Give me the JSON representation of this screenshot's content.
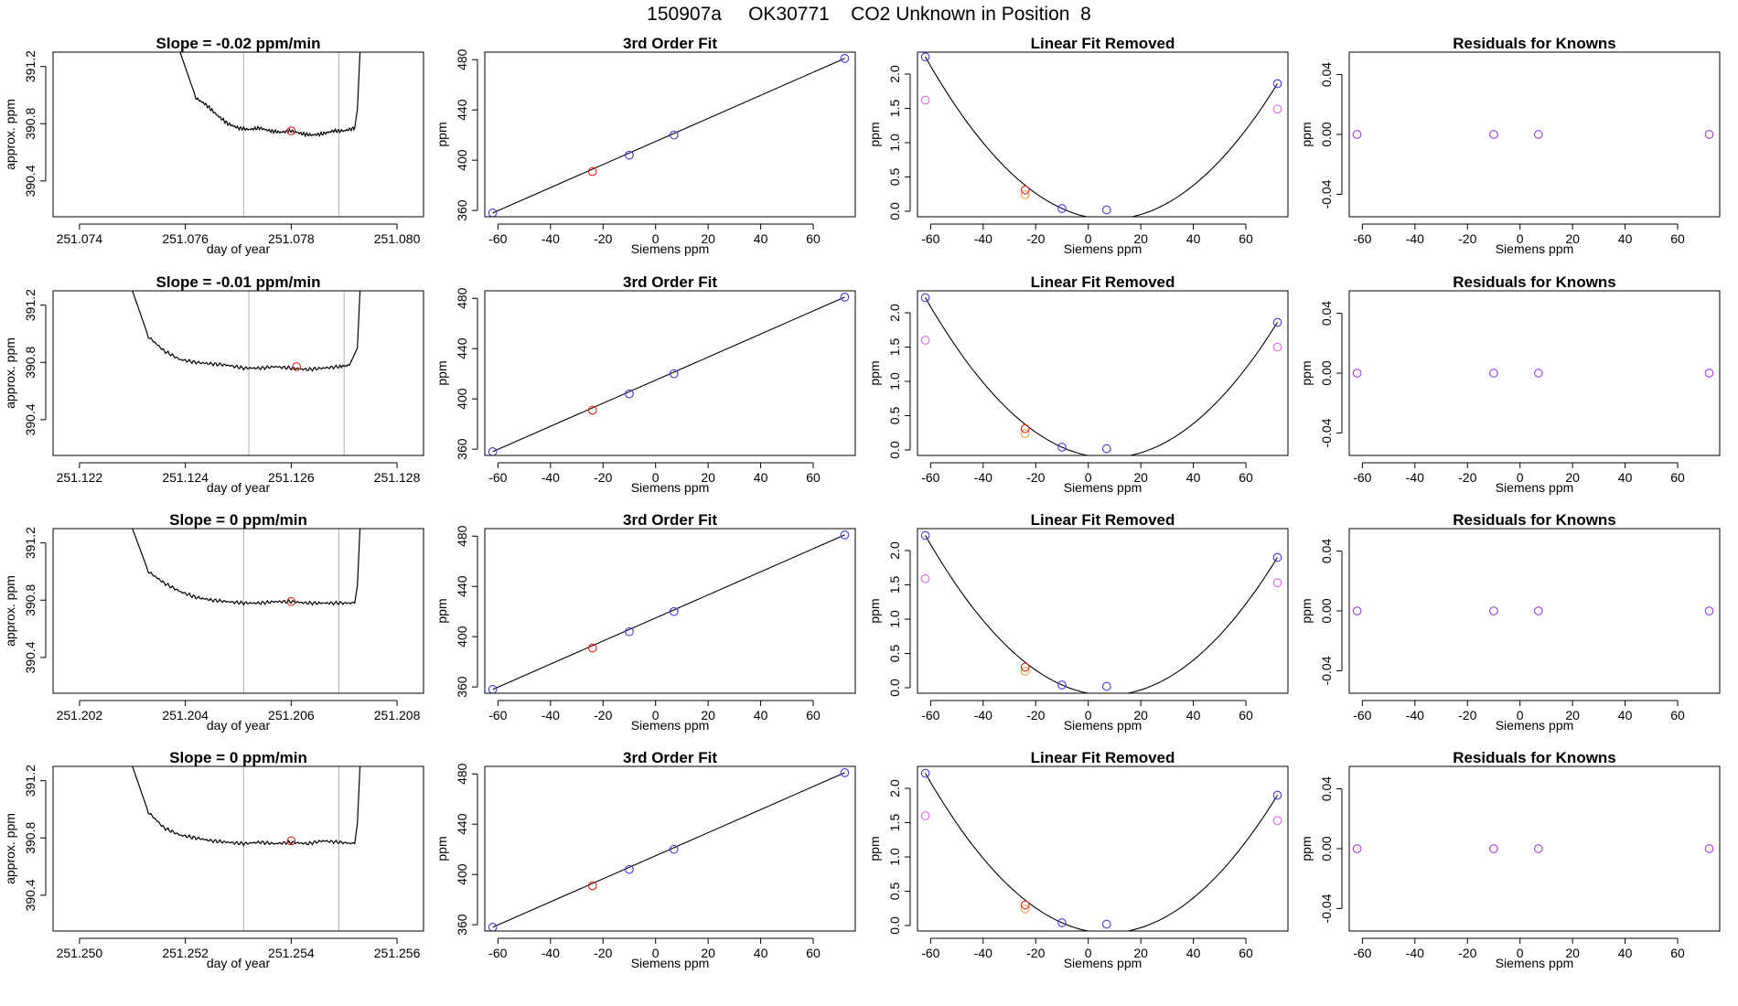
{
  "page": {
    "title": "150907a     OK30771    CO2 Unknown in Position  8"
  },
  "colors": {
    "trace": "#000000",
    "cursor": "#bbbbbb",
    "unknown": "#e0211d",
    "known_blue": "#3b3bdb",
    "ref_magenta": "#e065e6",
    "ref_orange": "#f2a33a",
    "residual_purple": "#9a3ad8",
    "frame": "#000000"
  },
  "chart_data": [
    {
      "type": "line",
      "title": "Slope =  -0.02  ppm/min",
      "xlabel": "day of year",
      "ylabel": "approx. ppm",
      "xlim": [
        251.0735,
        251.0805
      ],
      "ylim": [
        390.15,
        391.3
      ],
      "xticks": [
        "251.074",
        "251.076",
        "251.078",
        "251.080"
      ],
      "yticks": [
        "390.4",
        "390.8",
        "391.2"
      ],
      "cursors": [
        251.0771,
        251.0789
      ],
      "trace_x": [
        251.0759,
        251.0762,
        251.0764,
        251.0766,
        251.0768,
        251.077,
        251.0772,
        251.0774,
        251.0776,
        251.0778,
        251.078,
        251.0782,
        251.0784,
        251.0786,
        251.0788,
        251.079,
        251.0792,
        251.07925,
        251.0793
      ],
      "trace_y": [
        391.3,
        390.98,
        390.93,
        390.86,
        390.8,
        390.77,
        390.76,
        390.77,
        390.75,
        390.74,
        390.75,
        390.73,
        390.72,
        390.73,
        390.75,
        390.75,
        390.77,
        390.9,
        391.3
      ],
      "unknown_point": [
        251.078,
        390.75
      ]
    },
    {
      "type": "line",
      "title": "3rd Order Fit",
      "xlabel": "Siemens ppm",
      "ylabel": "ppm",
      "xlim": [
        -65,
        76
      ],
      "ylim": [
        355,
        486
      ],
      "xticks": [
        "-60",
        "-40",
        "-20",
        "0",
        "20",
        "40",
        "60"
      ],
      "yticks": [
        "360",
        "400",
        "440",
        "480"
      ],
      "known_x": [
        -62,
        -10,
        7,
        72
      ],
      "known_y": [
        358,
        404,
        420,
        481
      ],
      "unknown": [
        -24,
        391
      ]
    },
    {
      "type": "line",
      "title": "Linear Fit Removed",
      "xlabel": "Siemens ppm",
      "ylabel": "ppm",
      "xlim": [
        -65,
        76
      ],
      "ylim": [
        -0.08,
        2.32
      ],
      "xticks": [
        "-60",
        "-40",
        "-20",
        "0",
        "20",
        "40",
        "60"
      ],
      "yticks": [
        "0.0",
        "0.5",
        "1.0",
        "1.5",
        "2.0"
      ],
      "known_x": [
        -62,
        -10,
        7,
        72
      ],
      "known_y": [
        2.25,
        0.04,
        0.02,
        1.86
      ],
      "ref_x": [
        -62,
        72
      ],
      "ref_y": [
        1.62,
        1.49
      ],
      "unknown": [
        -24,
        0.31
      ],
      "unknown_ref": [
        -24,
        0.24
      ]
    },
    {
      "type": "scatter",
      "title": "Residuals for Knowns",
      "xlabel": "Siemens ppm",
      "ylabel": "ppm",
      "xlim": [
        -65,
        76
      ],
      "ylim": [
        -0.055,
        0.055
      ],
      "xticks": [
        "-60",
        "-40",
        "-20",
        "0",
        "20",
        "40",
        "60"
      ],
      "yticks": [
        "-0.04",
        "0.00",
        "0.04"
      ],
      "x": [
        -62,
        -10,
        7,
        72
      ],
      "y": [
        0,
        0,
        0,
        0
      ]
    },
    {
      "type": "line",
      "title": "Slope =  -0.01  ppm/min",
      "xlabel": "day of year",
      "ylabel": "approx. ppm",
      "xlim": [
        251.1215,
        251.1285
      ],
      "ylim": [
        390.15,
        391.3
      ],
      "xticks": [
        "251.122",
        "251.124",
        "251.126",
        "251.128"
      ],
      "yticks": [
        "390.4",
        "390.8",
        "391.2"
      ],
      "cursors": [
        251.1252,
        251.127
      ],
      "trace_x": [
        251.123,
        251.1233,
        251.1236,
        251.1239,
        251.1242,
        251.1245,
        251.1248,
        251.1251,
        251.1254,
        251.1257,
        251.126,
        251.1263,
        251.1266,
        251.1269,
        251.1271,
        251.12725,
        251.1273
      ],
      "trace_y": [
        391.3,
        390.98,
        390.88,
        390.82,
        390.8,
        390.79,
        390.78,
        390.76,
        390.76,
        390.77,
        390.76,
        390.75,
        390.76,
        390.77,
        390.78,
        390.9,
        391.3
      ],
      "unknown_point": [
        251.1261,
        390.77
      ]
    },
    {
      "type": "line",
      "title": "3rd Order Fit",
      "xlabel": "Siemens ppm",
      "ylabel": "ppm",
      "xlim": [
        -65,
        76
      ],
      "ylim": [
        355,
        486
      ],
      "xticks": [
        "-60",
        "-40",
        "-20",
        "0",
        "20",
        "40",
        "60"
      ],
      "yticks": [
        "360",
        "400",
        "440",
        "480"
      ],
      "known_x": [
        -62,
        -10,
        7,
        72
      ],
      "known_y": [
        358,
        404,
        420,
        481
      ],
      "unknown": [
        -24,
        391
      ]
    },
    {
      "type": "line",
      "title": "Linear Fit Removed",
      "xlabel": "Siemens ppm",
      "ylabel": "ppm",
      "xlim": [
        -65,
        76
      ],
      "ylim": [
        -0.08,
        2.32
      ],
      "xticks": [
        "-60",
        "-40",
        "-20",
        "0",
        "20",
        "40",
        "60"
      ],
      "yticks": [
        "0.0",
        "0.5",
        "1.0",
        "1.5",
        "2.0"
      ],
      "known_x": [
        -62,
        -10,
        7,
        72
      ],
      "known_y": [
        2.22,
        0.04,
        0.02,
        1.86
      ],
      "ref_x": [
        -62,
        72
      ],
      "ref_y": [
        1.6,
        1.5
      ],
      "unknown": [
        -24,
        0.31
      ],
      "unknown_ref": [
        -24,
        0.24
      ]
    },
    {
      "type": "scatter",
      "title": "Residuals for Knowns",
      "xlabel": "Siemens ppm",
      "ylabel": "ppm",
      "xlim": [
        -65,
        76
      ],
      "ylim": [
        -0.055,
        0.055
      ],
      "xticks": [
        "-60",
        "-40",
        "-20",
        "0",
        "20",
        "40",
        "60"
      ],
      "yticks": [
        "-0.04",
        "0.00",
        "0.04"
      ],
      "x": [
        -62,
        -10,
        7,
        72
      ],
      "y": [
        0,
        0,
        0,
        0
      ]
    },
    {
      "type": "line",
      "title": "Slope =  0  ppm/min",
      "xlabel": "day of year",
      "ylabel": "approx. ppm",
      "xlim": [
        251.2015,
        251.2085
      ],
      "ylim": [
        390.15,
        391.3
      ],
      "xticks": [
        "251.202",
        "251.204",
        "251.206",
        "251.208"
      ],
      "yticks": [
        "390.4",
        "390.8",
        "391.2"
      ],
      "cursors": [
        251.2051,
        251.2069
      ],
      "trace_x": [
        251.203,
        251.2033,
        251.2036,
        251.2039,
        251.2042,
        251.2045,
        251.2048,
        251.2051,
        251.2054,
        251.2057,
        251.206,
        251.2063,
        251.2066,
        251.2069,
        251.2072,
        251.20725,
        251.2073
      ],
      "trace_y": [
        391.3,
        391.0,
        390.92,
        390.86,
        390.82,
        390.8,
        390.79,
        390.78,
        390.78,
        390.79,
        390.79,
        390.78,
        390.78,
        390.78,
        390.78,
        390.9,
        391.3
      ],
      "unknown_point": [
        251.206,
        390.79
      ]
    },
    {
      "type": "line",
      "title": "3rd Order Fit",
      "xlabel": "Siemens ppm",
      "ylabel": "ppm",
      "xlim": [
        -65,
        76
      ],
      "ylim": [
        355,
        486
      ],
      "xticks": [
        "-60",
        "-40",
        "-20",
        "0",
        "20",
        "40",
        "60"
      ],
      "yticks": [
        "360",
        "400",
        "440",
        "480"
      ],
      "known_x": [
        -62,
        -10,
        7,
        72
      ],
      "known_y": [
        358,
        404,
        420,
        481
      ],
      "unknown": [
        -24,
        391
      ]
    },
    {
      "type": "line",
      "title": "Linear Fit Removed",
      "xlabel": "Siemens ppm",
      "ylabel": "ppm",
      "xlim": [
        -65,
        76
      ],
      "ylim": [
        -0.08,
        2.32
      ],
      "xticks": [
        "-60",
        "-40",
        "-20",
        "0",
        "20",
        "40",
        "60"
      ],
      "yticks": [
        "0.0",
        "0.5",
        "1.0",
        "1.5",
        "2.0"
      ],
      "known_x": [
        -62,
        -10,
        7,
        72
      ],
      "known_y": [
        2.22,
        0.04,
        0.02,
        1.9
      ],
      "ref_x": [
        -62,
        72
      ],
      "ref_y": [
        1.59,
        1.53
      ],
      "unknown": [
        -24,
        0.3
      ],
      "unknown_ref": [
        -24,
        0.24
      ]
    },
    {
      "type": "scatter",
      "title": "Residuals for Knowns",
      "xlabel": "Siemens ppm",
      "ylabel": "ppm",
      "xlim": [
        -65,
        76
      ],
      "ylim": [
        -0.055,
        0.055
      ],
      "xticks": [
        "-60",
        "-40",
        "-20",
        "0",
        "20",
        "40",
        "60"
      ],
      "yticks": [
        "-0.04",
        "0.00",
        "0.04"
      ],
      "x": [
        -62,
        -10,
        7,
        72
      ],
      "y": [
        0,
        0,
        0,
        0
      ]
    },
    {
      "type": "line",
      "title": "Slope =  0  ppm/min",
      "xlabel": "day of year",
      "ylabel": "approx. ppm",
      "xlim": [
        251.2495,
        251.2565
      ],
      "ylim": [
        390.15,
        391.3
      ],
      "xticks": [
        "251.250",
        "251.252",
        "251.254",
        "251.256"
      ],
      "yticks": [
        "390.4",
        "390.8",
        "391.2"
      ],
      "cursors": [
        251.2531,
        251.2549
      ],
      "trace_x": [
        251.251,
        251.2513,
        251.2516,
        251.2519,
        251.2522,
        251.2525,
        251.2528,
        251.2531,
        251.2534,
        251.2537,
        251.254,
        251.2543,
        251.2546,
        251.2549,
        251.2552,
        251.25525,
        251.2553
      ],
      "trace_y": [
        391.3,
        390.98,
        390.87,
        390.82,
        390.8,
        390.78,
        390.77,
        390.76,
        390.77,
        390.76,
        390.77,
        390.76,
        390.78,
        390.77,
        390.76,
        390.9,
        391.3
      ],
      "unknown_point": [
        251.254,
        390.78
      ]
    },
    {
      "type": "line",
      "title": "3rd Order Fit",
      "xlabel": "Siemens ppm",
      "ylabel": "ppm",
      "xlim": [
        -65,
        76
      ],
      "ylim": [
        355,
        486
      ],
      "xticks": [
        "-60",
        "-40",
        "-20",
        "0",
        "20",
        "40",
        "60"
      ],
      "yticks": [
        "360",
        "400",
        "440",
        "480"
      ],
      "known_x": [
        -62,
        -10,
        7,
        72
      ],
      "known_y": [
        358,
        404,
        420,
        481
      ],
      "unknown": [
        -24,
        391
      ]
    },
    {
      "type": "line",
      "title": "Linear Fit Removed",
      "xlabel": "Siemens ppm",
      "ylabel": "ppm",
      "xlim": [
        -65,
        76
      ],
      "ylim": [
        -0.08,
        2.32
      ],
      "xticks": [
        "-60",
        "-40",
        "-20",
        "0",
        "20",
        "40",
        "60"
      ],
      "yticks": [
        "0.0",
        "0.5",
        "1.0",
        "1.5",
        "2.0"
      ],
      "known_x": [
        -62,
        -10,
        7,
        72
      ],
      "known_y": [
        2.22,
        0.04,
        0.02,
        1.9
      ],
      "ref_x": [
        -62,
        72
      ],
      "ref_y": [
        1.6,
        1.53
      ],
      "unknown": [
        -24,
        0.3
      ],
      "unknown_ref": [
        -24,
        0.24
      ]
    },
    {
      "type": "scatter",
      "title": "Residuals for Knowns",
      "xlabel": "Siemens ppm",
      "ylabel": "ppm",
      "xlim": [
        -65,
        76
      ],
      "ylim": [
        -0.055,
        0.055
      ],
      "xticks": [
        "-60",
        "-40",
        "-20",
        "0",
        "20",
        "40",
        "60"
      ],
      "yticks": [
        "-0.04",
        "0.00",
        "0.04"
      ],
      "x": [
        -62,
        -10,
        7,
        72
      ],
      "y": [
        0,
        0,
        0,
        0
      ]
    }
  ]
}
